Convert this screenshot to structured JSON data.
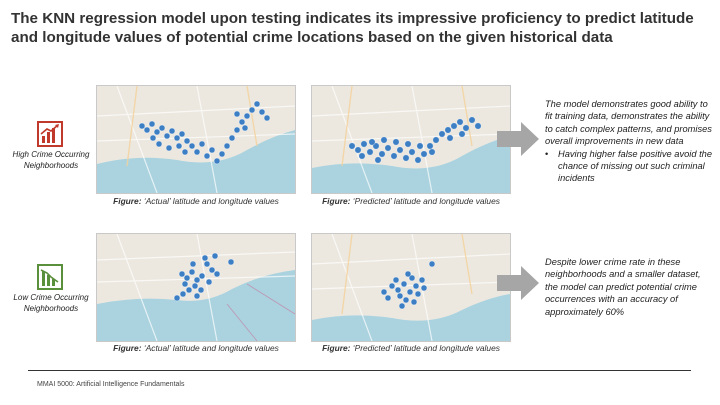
{
  "slide": {
    "title": "The KNN regression model upon testing indicates its impressive proficiency to predict latitude and longitude values of potential crime locations based on the given historical data",
    "footer": "MMAI 5000: Artificial Intelligence Fundamentals"
  },
  "rows": [
    {
      "label": "High Crime Occurring Neighborhoods",
      "icon": "bar-chart-icon",
      "icon_color": "#c0392b",
      "actual_caption_bold": "Figure:",
      "actual_caption_rest": " ‘Actual’ latitude and longitude values",
      "predicted_caption_bold": "Figure:",
      "predicted_caption_rest": " ‘Predicted’ latitude and longitude values",
      "description": "The model demonstrates good ability to fit training data, demonstrates the ability to catch complex patterns, and promises overall improvements in new data",
      "bullet": "Having higher false positive avoid the chance of missing out such criminal incidents"
    },
    {
      "label": "Low Crime Occurring Neighborhoods",
      "icon": "bar-chart-icon",
      "icon_color": "#5a8f3c",
      "actual_caption_bold": "Figure:",
      "actual_caption_rest": " ‘Actual’ latitude and longitude values",
      "predicted_caption_bold": "Figure:",
      "predicted_caption_rest": " ‘Predicted’ latitude and longitude values",
      "description": "Despite lower crime rate in these neighborhoods and a smaller dataset, the model can predict potential crime occurrences with an accuracy of approximately 60%"
    }
  ],
  "colors": {
    "marker": "#3d7fc4",
    "water": "#aad3df",
    "land": "#ece8e0",
    "arrow": "#a6a6a6"
  }
}
